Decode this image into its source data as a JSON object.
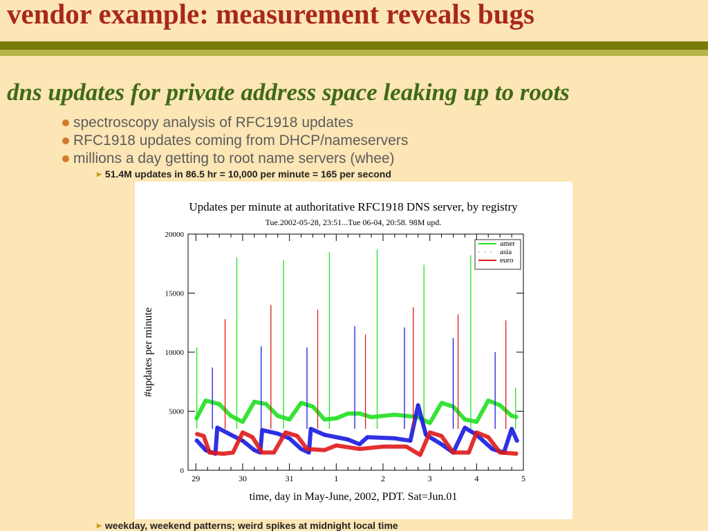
{
  "slide": {
    "title": "vendor example: measurement reveals bugs",
    "subtitle": "dns updates for private address space leaking up to roots",
    "bullets": [
      "spectroscopy analysis of RFC1918 updates",
      "RFC1918 updates coming from DHCP/nameservers",
      "millions a day getting to root name servers (whee)"
    ],
    "subbullets": [
      "51.4M updates in 86.5 hr = 10,000 per minute = 165 per second",
      "weekday, weekend patterns; weird spikes at midnight local time"
    ]
  },
  "chart_data": {
    "type": "line",
    "title": "Updates per minute at authoritative RFC1918 DNS server, by registry",
    "subtitle": "Tue.2002-05-28, 23:51...Tue 06-04, 20:58. 98M upd.",
    "xlabel": "time, day in May-June, 2002, PDT. Sat=Jun.01",
    "ylabel": "#updates per minute",
    "xlim": [
      "2002-05-28T20:00",
      "2002-06-05T00:00"
    ],
    "ylim": [
      0,
      20000
    ],
    "xticks": [
      {
        "t": "2002-05-29T00:00",
        "label": "29"
      },
      {
        "t": "2002-05-30T00:00",
        "label": "30"
      },
      {
        "t": "2002-05-31T00:00",
        "label": "31"
      },
      {
        "t": "2002-06-01T00:00",
        "label": "1"
      },
      {
        "t": "2002-06-02T00:00",
        "label": "2"
      },
      {
        "t": "2002-06-03T00:00",
        "label": "3"
      },
      {
        "t": "2002-06-04T00:00",
        "label": "4"
      },
      {
        "t": "2002-06-05T00:00",
        "label": "5"
      }
    ],
    "yticks": [
      0,
      5000,
      10000,
      15000,
      20000
    ],
    "legend_position": "top-right",
    "grid": false,
    "series": [
      {
        "name": "amer",
        "color": "#22e022",
        "points": [
          [
            "2002-05-29T00:00",
            4300
          ],
          [
            "2002-05-29T05:00",
            5900
          ],
          [
            "2002-05-29T12:00",
            5600
          ],
          [
            "2002-05-29T18:00",
            4600
          ],
          [
            "2002-05-30T00:00",
            4100
          ],
          [
            "2002-05-30T06:00",
            5800
          ],
          [
            "2002-05-30T12:00",
            5600
          ],
          [
            "2002-05-30T18:00",
            4600
          ],
          [
            "2002-05-31T00:00",
            4300
          ],
          [
            "2002-05-31T06:00",
            5700
          ],
          [
            "2002-05-31T12:00",
            5400
          ],
          [
            "2002-05-31T18:00",
            4300
          ],
          [
            "2002-06-01T00:00",
            4400
          ],
          [
            "2002-06-01T06:00",
            4800
          ],
          [
            "2002-06-01T12:00",
            4800
          ],
          [
            "2002-06-01T18:00",
            4500
          ],
          [
            "2002-06-02T00:00",
            4600
          ],
          [
            "2002-06-02T06:00",
            4700
          ],
          [
            "2002-06-02T12:00",
            4600
          ],
          [
            "2002-06-02T18:00",
            4500
          ],
          [
            "2002-06-03T00:00",
            4000
          ],
          [
            "2002-06-03T06:00",
            5700
          ],
          [
            "2002-06-03T12:00",
            5400
          ],
          [
            "2002-06-03T18:00",
            4300
          ],
          [
            "2002-06-04T00:00",
            4100
          ],
          [
            "2002-06-04T06:00",
            5900
          ],
          [
            "2002-06-04T12:00",
            5500
          ],
          [
            "2002-06-04T18:00",
            4600
          ],
          [
            "2002-06-04T21:00",
            4500
          ]
        ],
        "spikes": [
          [
            "2002-05-29T00:30",
            10400
          ],
          [
            "2002-05-29T21:00",
            18000
          ],
          [
            "2002-05-30T21:00",
            17800
          ],
          [
            "2002-05-31T20:30",
            18500
          ],
          [
            "2002-06-01T21:00",
            18700
          ],
          [
            "2002-06-02T21:00",
            17400
          ],
          [
            "2002-06-03T21:00",
            18200
          ],
          [
            "2002-06-04T20:00",
            7000
          ]
        ]
      },
      {
        "name": "asia",
        "color": "#1a1ae0",
        "points": [
          [
            "2002-05-29T00:00",
            2600
          ],
          [
            "2002-05-29T05:00",
            1700
          ],
          [
            "2002-05-29T10:00",
            1400
          ],
          [
            "2002-05-29T11:00",
            3600
          ],
          [
            "2002-05-29T18:00",
            3000
          ],
          [
            "2002-05-30T00:00",
            2500
          ],
          [
            "2002-05-30T06:00",
            1700
          ],
          [
            "2002-05-30T09:00",
            1500
          ],
          [
            "2002-05-30T10:00",
            3400
          ],
          [
            "2002-05-30T18:00",
            3100
          ],
          [
            "2002-05-31T00:00",
            2700
          ],
          [
            "2002-05-31T06:00",
            1800
          ],
          [
            "2002-05-31T10:00",
            1500
          ],
          [
            "2002-05-31T11:00",
            3500
          ],
          [
            "2002-05-31T18:00",
            3000
          ],
          [
            "2002-06-01T06:00",
            2600
          ],
          [
            "2002-06-01T12:00",
            2200
          ],
          [
            "2002-06-01T16:00",
            2800
          ],
          [
            "2002-06-02T06:00",
            2700
          ],
          [
            "2002-06-02T14:00",
            2500
          ],
          [
            "2002-06-02T18:00",
            5500
          ],
          [
            "2002-06-02T22:00",
            3000
          ],
          [
            "2002-06-03T06:00",
            2200
          ],
          [
            "2002-06-03T12:00",
            1500
          ],
          [
            "2002-06-03T18:00",
            3600
          ],
          [
            "2002-06-04T00:00",
            3000
          ],
          [
            "2002-06-04T08:00",
            1800
          ],
          [
            "2002-06-04T14:00",
            1500
          ],
          [
            "2002-06-04T18:00",
            3500
          ],
          [
            "2002-06-04T21:00",
            2400
          ]
        ],
        "spikes": [
          [
            "2002-05-29T08:30",
            8700
          ],
          [
            "2002-05-30T09:30",
            10500
          ],
          [
            "2002-05-31T09:00",
            10400
          ],
          [
            "2002-06-01T09:30",
            12200
          ],
          [
            "2002-06-02T11:00",
            12100
          ],
          [
            "2002-06-03T12:00",
            11200
          ],
          [
            "2002-06-04T09:30",
            10000
          ]
        ]
      },
      {
        "name": "euro",
        "color": "#e01a1a",
        "points": [
          [
            "2002-05-29T00:00",
            3100
          ],
          [
            "2002-05-29T04:00",
            2900
          ],
          [
            "2002-05-29T07:00",
            1500
          ],
          [
            "2002-05-29T14:00",
            1400
          ],
          [
            "2002-05-29T19:00",
            1500
          ],
          [
            "2002-05-30T00:00",
            3200
          ],
          [
            "2002-05-30T05:00",
            2800
          ],
          [
            "2002-05-30T10:00",
            1500
          ],
          [
            "2002-05-30T16:00",
            1500
          ],
          [
            "2002-05-30T22:00",
            3200
          ],
          [
            "2002-05-31T04:00",
            2900
          ],
          [
            "2002-05-31T09:00",
            1800
          ],
          [
            "2002-05-31T18:00",
            1700
          ],
          [
            "2002-06-01T00:00",
            2100
          ],
          [
            "2002-06-01T12:00",
            1800
          ],
          [
            "2002-06-02T00:00",
            2000
          ],
          [
            "2002-06-02T12:00",
            2000
          ],
          [
            "2002-06-02T19:00",
            1300
          ],
          [
            "2002-06-03T00:00",
            3200
          ],
          [
            "2002-06-03T06:00",
            2900
          ],
          [
            "2002-06-03T12:00",
            1500
          ],
          [
            "2002-06-03T20:00",
            1500
          ],
          [
            "2002-06-04T00:00",
            3200
          ],
          [
            "2002-06-04T06:00",
            2800
          ],
          [
            "2002-06-04T12:00",
            1500
          ],
          [
            "2002-06-04T21:00",
            1400
          ]
        ],
        "spikes": [
          [
            "2002-05-29T15:00",
            12800
          ],
          [
            "2002-05-30T14:30",
            14000
          ],
          [
            "2002-05-31T14:30",
            13600
          ],
          [
            "2002-06-01T15:00",
            11500
          ],
          [
            "2002-06-02T15:30",
            13800
          ],
          [
            "2002-06-03T14:30",
            13200
          ],
          [
            "2002-06-04T15:00",
            12700
          ]
        ]
      }
    ]
  }
}
